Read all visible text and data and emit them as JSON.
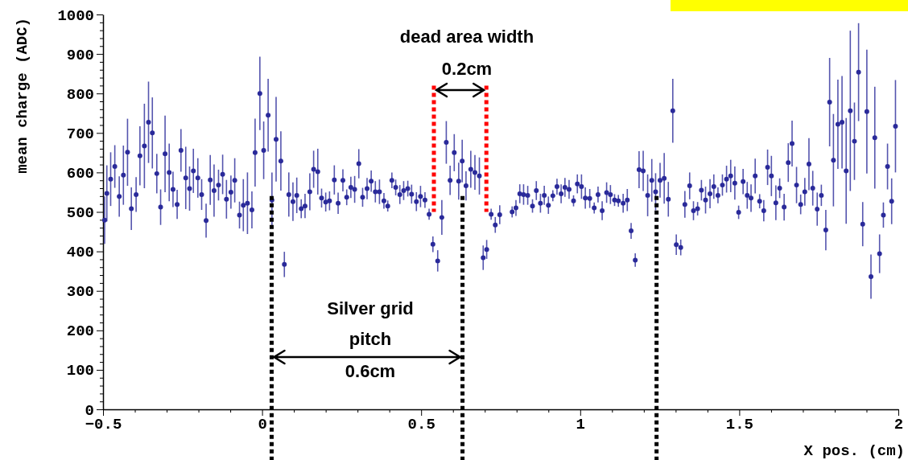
{
  "chart_data": {
    "type": "scatter",
    "xlabel": "X pos. (cm)",
    "ylabel": "mean charge (ADC)",
    "xlim": [
      -0.5,
      2
    ],
    "ylim": [
      0,
      1000
    ],
    "xticks": [
      {
        "value": -0.5,
        "label": "−0.5"
      },
      {
        "value": -0.4,
        "label": null
      },
      {
        "value": -0.3,
        "label": null
      },
      {
        "value": -0.2,
        "label": null
      },
      {
        "value": -0.1,
        "label": null
      },
      {
        "value": 0,
        "label": "0"
      },
      {
        "value": 0.1,
        "label": null
      },
      {
        "value": 0.2,
        "label": null
      },
      {
        "value": 0.3,
        "label": null
      },
      {
        "value": 0.4,
        "label": null
      },
      {
        "value": 0.5,
        "label": "0.5"
      },
      {
        "value": 0.6,
        "label": null
      },
      {
        "value": 0.7,
        "label": null
      },
      {
        "value": 0.8,
        "label": null
      },
      {
        "value": 0.9,
        "label": null
      },
      {
        "value": 1,
        "label": "1"
      },
      {
        "value": 1.1,
        "label": null
      },
      {
        "value": 1.2,
        "label": null
      },
      {
        "value": 1.3,
        "label": null
      },
      {
        "value": 1.4,
        "label": null
      },
      {
        "value": 1.5,
        "label": "1.5"
      },
      {
        "value": 1.6,
        "label": null
      },
      {
        "value": 1.7,
        "label": null
      },
      {
        "value": 1.8,
        "label": null
      },
      {
        "value": 1.9,
        "label": null
      },
      {
        "value": 2,
        "label": "2"
      }
    ],
    "yticks": [
      0,
      {
        "value": 20,
        "label": null
      },
      {
        "value": 40,
        "label": null
      },
      {
        "value": 60,
        "label": null
      },
      {
        "value": 80,
        "label": null
      },
      100,
      {
        "value": 120,
        "label": null
      },
      {
        "value": 140,
        "label": null
      },
      {
        "value": 160,
        "label": null
      },
      {
        "value": 180,
        "label": null
      },
      200,
      {
        "value": 220,
        "label": null
      },
      {
        "value": 240,
        "label": null
      },
      {
        "value": 260,
        "label": null
      },
      {
        "value": 280,
        "label": null
      },
      300,
      {
        "value": 320,
        "label": null
      },
      {
        "value": 340,
        "label": null
      },
      {
        "value": 360,
        "label": null
      },
      {
        "value": 380,
        "label": null
      },
      400,
      {
        "value": 420,
        "label": null
      },
      {
        "value": 440,
        "label": null
      },
      {
        "value": 460,
        "label": null
      },
      {
        "value": 480,
        "label": null
      },
      500,
      {
        "value": 520,
        "label": null
      },
      {
        "value": 540,
        "label": null
      },
      {
        "value": 560,
        "label": null
      },
      {
        "value": 580,
        "label": null
      },
      600,
      {
        "value": 620,
        "label": null
      },
      {
        "value": 640,
        "label": null
      },
      {
        "value": 660,
        "label": null
      },
      {
        "value": 680,
        "label": null
      },
      700,
      {
        "value": 720,
        "label": null
      },
      {
        "value": 740,
        "label": null
      },
      {
        "value": 760,
        "label": null
      },
      {
        "value": 780,
        "label": null
      },
      800,
      {
        "value": 820,
        "label": null
      },
      {
        "value": 840,
        "label": null
      },
      {
        "value": 860,
        "label": null
      },
      {
        "value": 880,
        "label": null
      },
      900,
      {
        "value": 920,
        "label": null
      },
      {
        "value": 940,
        "label": null
      },
      {
        "value": 960,
        "label": null
      },
      {
        "value": 980,
        "label": null
      },
      1000
    ],
    "grid": false,
    "marker": "circle",
    "series": [
      {
        "color": "#2a2a9a",
        "x": [
          -0.495,
          -0.488,
          -0.476,
          -0.463,
          -0.449,
          -0.436,
          -0.423,
          -0.411,
          -0.396,
          -0.384,
          -0.37,
          -0.357,
          -0.345,
          -0.331,
          -0.319,
          -0.305,
          -0.292,
          -0.28,
          -0.267,
          -0.255,
          -0.24,
          -0.228,
          -0.216,
          -0.202,
          -0.19,
          -0.176,
          -0.163,
          -0.151,
          -0.137,
          -0.124,
          -0.112,
          -0.098,
          -0.086,
          -0.071,
          -0.059,
          -0.046,
          -0.032,
          -0.022,
          -0.007,
          0.005,
          0.019,
          0.031,
          0.044,
          0.059,
          0.07,
          0.084,
          0.097,
          0.109,
          0.123,
          0.135,
          0.15,
          0.162,
          0.175,
          0.187,
          0.2,
          0.212,
          0.227,
          0.239,
          0.254,
          0.266,
          0.279,
          0.291,
          0.304,
          0.316,
          0.33,
          0.343,
          0.356,
          0.369,
          0.383,
          0.395,
          0.408,
          0.42,
          0.433,
          0.445,
          0.458,
          0.47,
          0.485,
          0.498,
          0.512,
          0.525,
          0.537,
          0.552,
          0.565,
          0.579,
          0.591,
          0.604,
          0.618,
          0.629,
          0.641,
          0.656,
          0.669,
          0.683,
          0.695,
          0.706,
          0.72,
          0.733,
          0.747,
          0.786,
          0.798,
          0.81,
          0.822,
          0.835,
          0.85,
          0.862,
          0.875,
          0.887,
          0.9,
          0.914,
          0.927,
          0.94,
          0.952,
          0.965,
          0.979,
          0.991,
          1.004,
          1.016,
          1.03,
          1.044,
          1.056,
          1.069,
          1.083,
          1.095,
          1.108,
          1.12,
          1.135,
          1.148,
          1.16,
          1.173,
          1.185,
          1.198,
          1.212,
          1.225,
          1.237,
          1.251,
          1.264,
          1.277,
          1.291,
          1.302,
          1.316,
          1.329,
          1.344,
          1.356,
          1.369,
          1.381,
          1.394,
          1.408,
          1.42,
          1.433,
          1.447,
          1.46,
          1.473,
          1.486,
          1.498,
          1.512,
          1.525,
          1.537,
          1.55,
          1.564,
          1.577,
          1.589,
          1.601,
          1.615,
          1.627,
          1.641,
          1.654,
          1.666,
          1.68,
          1.693,
          1.706,
          1.719,
          1.731,
          1.745,
          1.758,
          1.772,
          1.784,
          1.796,
          1.81,
          1.823,
          1.836,
          1.849,
          1.862,
          1.875,
          1.888,
          1.901,
          1.914,
          1.926,
          1.941,
          1.953,
          1.966,
          1.979,
          1.991
        ],
        "values": [
          479,
          547,
          583,
          615,
          539,
          593,
          651,
          508,
          544,
          642,
          667,
          727,
          700,
          597,
          512,
          647,
          600,
          557,
          519,
          656,
          586,
          559,
          604,
          586,
          544,
          478,
          581,
          554,
          568,
          595,
          532,
          550,
          580,
          492,
          517,
          522,
          505,
          650,
          800,
          656,
          745,
          530,
          684,
          629,
          367,
          544,
          526,
          542,
          508,
          515,
          551,
          608,
          602,
          535,
          525,
          528,
          581,
          522,
          580,
          537,
          562,
          557,
          622,
          537,
          559,
          578,
          551,
          551,
          528,
          515,
          580,
          562,
          544,
          554,
          559,
          545,
          526,
          539,
          530,
          494,
          418,
          376,
          486,
          676,
          580,
          650,
          578,
          629,
          566,
          608,
          600,
          591,
          384,
          405,
          494,
          467,
          493,
          500,
          510,
          546,
          544,
          542,
          515,
          554,
          522,
          542,
          517,
          541,
          564,
          546,
          562,
          557,
          528,
          571,
          564,
          535,
          534,
          510,
          544,
          503,
          549,
          544,
          530,
          528,
          522,
          530,
          452,
          378,
          607,
          604,
          542,
          580,
          551,
          580,
          585,
          532,
          756,
          417,
          410,
          519,
          566,
          503,
          508,
          555,
          530,
          546,
          564,
          542,
          568,
          583,
          591,
          573,
          499,
          577,
          542,
          535,
          591,
          527,
          503,
          613,
          591,
          523,
          560,
          512,
          625,
          673,
          568,
          519,
          551,
          621,
          560,
          507,
          542,
          454,
          778,
          631,
          722,
          727,
          604,
          756,
          679,
          854,
          469,
          754,
          336,
          688,
          394,
          492,
          615,
          527,
          717
        ],
        "xerrors": [
          0.005,
          0.005,
          0.005,
          0.005,
          0.005,
          0.005,
          0.005,
          0.005,
          0.005,
          0.005,
          0.005,
          0.005,
          0.005,
          0.005,
          0.005,
          0.005,
          0.005,
          0.005,
          0.005,
          0.005,
          0.005,
          0.005,
          0.005,
          0.005,
          0.005,
          0.005,
          0.005,
          0.005,
          0.005,
          0.005,
          0.005,
          0.005,
          0.005,
          0.005,
          0.005,
          0.005,
          0.005,
          0.005,
          0.005,
          0.005,
          0.005,
          0.005,
          0.005,
          0.005,
          0.005,
          0.005,
          0.005,
          0.005,
          0.005,
          0.005,
          0.005,
          0.005,
          0.005,
          0.005,
          0.005,
          0.005,
          0.005,
          0.005,
          0.005,
          0.005,
          0.005,
          0.005,
          0.005,
          0.005,
          0.005,
          0.005,
          0.005,
          0.005,
          0.005,
          0.005,
          0.005,
          0.005,
          0.005,
          0.005,
          0.005,
          0.005,
          0.005,
          0.005,
          0.005,
          0.005,
          0.005,
          0.005,
          0.005,
          0.005,
          0.005,
          0.005,
          0.005,
          0.005,
          0.005,
          0.005,
          0.005,
          0.005,
          0.005,
          0.005,
          0.005,
          0.005,
          0.005,
          0.005,
          0.005,
          0.005,
          0.005,
          0.005,
          0.005,
          0.005,
          0.005,
          0.005,
          0.005,
          0.005,
          0.005,
          0.005,
          0.005,
          0.005,
          0.005,
          0.005,
          0.005,
          0.005,
          0.005,
          0.005,
          0.005,
          0.005,
          0.005,
          0.005,
          0.005,
          0.005,
          0.005,
          0.005,
          0.005,
          0.005,
          0.005,
          0.005,
          0.005,
          0.005,
          0.005,
          0.005,
          0.005,
          0.005,
          0.005,
          0.005,
          0.005,
          0.005,
          0.005,
          0.005,
          0.005,
          0.005,
          0.005,
          0.005,
          0.005,
          0.005,
          0.005,
          0.005,
          0.005,
          0.005,
          0.005,
          0.005,
          0.005,
          0.005,
          0.005,
          0.005,
          0.005,
          0.005,
          0.005,
          0.005,
          0.005,
          0.005,
          0.005,
          0.005,
          0.005,
          0.005,
          0.005,
          0.005,
          0.005,
          0.005,
          0.005,
          0.005,
          0.005,
          0.005,
          0.005,
          0.005,
          0.005,
          0.005,
          0.005,
          0.005,
          0.005,
          0.005,
          0.005,
          0.005,
          0.005,
          0.005,
          0.005,
          0.005,
          0.005
        ],
        "errors": [
          60,
          71,
          68,
          54,
          51,
          75,
          85,
          54,
          44,
          75,
          107,
          103,
          90,
          50,
          45,
          97,
          73,
          45,
          37,
          54,
          79,
          56,
          56,
          50,
          39,
          43,
          63,
          66,
          39,
          50,
          49,
          42,
          56,
          34,
          66,
          78,
          47,
          86,
          93,
          73,
          92,
          70,
          107,
          75,
          32,
          56,
          49,
          45,
          24,
          31,
          47,
          47,
          58,
          24,
          24,
          24,
          37,
          27,
          28,
          20,
          27,
          34,
          37,
          24,
          27,
          27,
          27,
          31,
          20,
          14,
          20,
          20,
          24,
          24,
          20,
          24,
          24,
          27,
          20,
          14,
          20,
          27,
          44,
          54,
          37,
          47,
          47,
          54,
          37,
          47,
          44,
          47,
          31,
          24,
          14,
          20,
          24,
          14,
          20,
          24,
          26,
          24,
          17,
          24,
          24,
          24,
          22,
          14,
          20,
          24,
          24,
          24,
          14,
          24,
          31,
          27,
          24,
          14,
          20,
          24,
          26,
          24,
          15,
          15,
          24,
          28,
          20,
          17,
          47,
          51,
          53,
          54,
          47,
          44,
          64,
          44,
          81,
          26,
          20,
          34,
          34,
          24,
          17,
          26,
          34,
          37,
          31,
          20,
          27,
          34,
          41,
          42,
          17,
          32,
          34,
          35,
          44,
          18,
          27,
          45,
          51,
          44,
          25,
          34,
          49,
          58,
          46,
          25,
          35,
          66,
          44,
          42,
          27,
          51,
          112,
          117,
          113,
          117,
          134,
          203,
          98,
          124,
          56,
          157,
          56,
          129,
          49,
          32,
          58,
          58,
          117
        ]
      }
    ],
    "ref_lines": [
      {
        "axis": "x",
        "value": 0.03,
        "color": "#000000",
        "line_style": "dotted"
      },
      {
        "axis": "x",
        "value": 0.63,
        "color": "#000000",
        "line_style": "dotted"
      },
      {
        "axis": "x",
        "value": 1.24,
        "color": "#000000",
        "line_style": "dotted"
      },
      {
        "axis": "x",
        "value": 0.54,
        "color": "#ff0000",
        "line_style": "dotted"
      },
      {
        "axis": "x",
        "value": 0.705,
        "color": "#ff0000",
        "line_style": "dotted"
      }
    ],
    "annotations": [
      "dead area width",
      "0.2cm",
      "Silver grid",
      "pitch",
      "0.6cm"
    ]
  }
}
